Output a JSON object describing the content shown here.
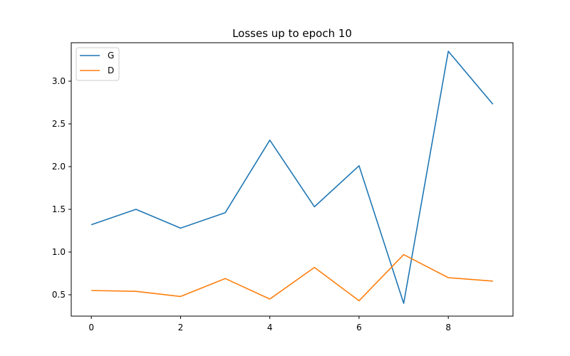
{
  "chart_data": {
    "type": "line",
    "title": "Losses up to epoch 10",
    "xlabel": "",
    "ylabel": "",
    "x": [
      0,
      1,
      2,
      3,
      4,
      5,
      6,
      7,
      8,
      9
    ],
    "series": [
      {
        "name": "G",
        "color": "#1f77b4",
        "values": [
          1.32,
          1.5,
          1.28,
          1.46,
          2.31,
          1.53,
          2.01,
          0.4,
          3.35,
          2.73
        ]
      },
      {
        "name": "D",
        "color": "#ff7f0e",
        "values": [
          0.55,
          0.54,
          0.48,
          0.69,
          0.45,
          0.82,
          0.43,
          0.97,
          0.7,
          0.66
        ]
      }
    ],
    "xlim": [
      -0.45,
      9.45
    ],
    "ylim": [
      0.25,
      3.45
    ],
    "xticks": [
      0,
      2,
      4,
      6,
      8
    ],
    "yticks": [
      0.5,
      1.0,
      1.5,
      2.0,
      2.5,
      3.0
    ],
    "xtick_labels": [
      "0",
      "2",
      "4",
      "6",
      "8"
    ],
    "ytick_labels": [
      "0.5",
      "1.0",
      "1.5",
      "2.0",
      "2.5",
      "3.0"
    ],
    "grid": false,
    "legend_position": "top-left"
  }
}
